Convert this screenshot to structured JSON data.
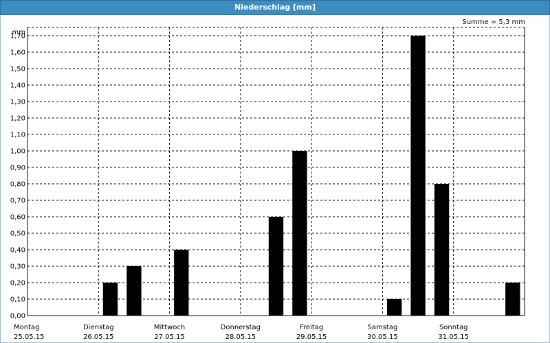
{
  "header": {
    "title": "Niederschlag [mm]"
  },
  "summary": {
    "label": "Summe = 5,3 mm"
  },
  "chart_data": {
    "type": "bar",
    "title": "Niederschlag [mm]",
    "ylabel": "mm",
    "xlabel": "",
    "ylim": [
      0,
      1.75
    ],
    "yticks": [
      "0,00",
      "0,10",
      "0,20",
      "0,30",
      "0,40",
      "0,50",
      "0,60",
      "0,70",
      "0,80",
      "0,90",
      "1,00",
      "1,10",
      "1,20",
      "1,30",
      "1,40",
      "1,50",
      "1,60",
      "1,70"
    ],
    "grid": true,
    "days": [
      {
        "weekday": "Montag",
        "date": "25.05.15"
      },
      {
        "weekday": "Dienstag",
        "date": "26.05.15"
      },
      {
        "weekday": "Mittwoch",
        "date": "27.05.15"
      },
      {
        "weekday": "Donnerstag",
        "date": "28.05.15"
      },
      {
        "weekday": "Freitag",
        "date": "29.05.15"
      },
      {
        "weekday": "Samstag",
        "date": "30.05.15"
      },
      {
        "weekday": "Sonntag",
        "date": "31.05.15"
      }
    ],
    "series": [
      {
        "values": [
          0,
          0,
          0,
          0.2,
          0.3,
          0,
          0.4,
          0,
          0,
          0,
          0.6,
          1.0,
          0,
          0,
          0,
          0.1,
          1.7,
          0.8,
          0,
          0,
          0.2
        ]
      }
    ],
    "colors": {
      "bar": "#000000",
      "grid": "#000000",
      "header": "#3d8dc3"
    }
  }
}
